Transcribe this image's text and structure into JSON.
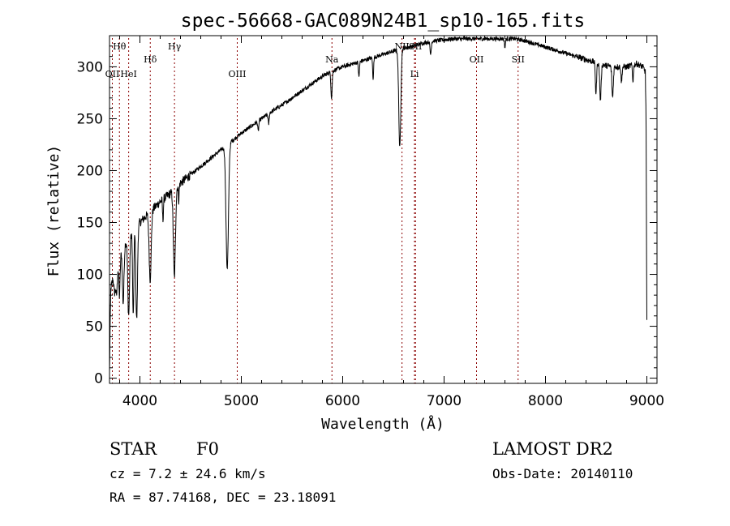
{
  "chart_data": {
    "type": "line",
    "title": "spec-56668-GAC089N24B1_sp10-165.fits",
    "xlabel": "Wavelength (Å)",
    "ylabel": "Flux (relative)",
    "xlim": [
      3700,
      9100
    ],
    "ylim": [
      -5,
      330
    ],
    "x_ticks": [
      4000,
      5000,
      6000,
      7000,
      8000,
      9000
    ],
    "y_ticks": [
      0,
      50,
      100,
      150,
      200,
      250,
      300
    ],
    "grid": false,
    "line_color": "#000000",
    "marker_color": "#8b0000",
    "continuum": [
      [
        3700,
        5
      ],
      [
        3712,
        85
      ],
      [
        3740,
        100
      ],
      [
        3780,
        115
      ],
      [
        3820,
        125
      ],
      [
        3850,
        130
      ],
      [
        3900,
        138
      ],
      [
        3950,
        145
      ],
      [
        4000,
        150
      ],
      [
        4050,
        155
      ],
      [
        4100,
        160
      ],
      [
        4150,
        165
      ],
      [
        4200,
        170
      ],
      [
        4300,
        178
      ],
      [
        4400,
        188
      ],
      [
        4500,
        196
      ],
      [
        4600,
        204
      ],
      [
        4700,
        212
      ],
      [
        4800,
        220
      ],
      [
        4900,
        228
      ],
      [
        5000,
        236
      ],
      [
        5100,
        243
      ],
      [
        5200,
        250
      ],
      [
        5300,
        257
      ],
      [
        5400,
        263
      ],
      [
        5500,
        270
      ],
      [
        5600,
        277
      ],
      [
        5700,
        284
      ],
      [
        5800,
        291
      ],
      [
        5900,
        296
      ],
      [
        6000,
        300
      ],
      [
        6100,
        303
      ],
      [
        6200,
        306
      ],
      [
        6300,
        309
      ],
      [
        6400,
        312
      ],
      [
        6500,
        315
      ],
      [
        6600,
        318
      ],
      [
        6700,
        320
      ],
      [
        6800,
        323
      ],
      [
        6900,
        325
      ],
      [
        7000,
        326
      ],
      [
        7100,
        327
      ],
      [
        7200,
        327
      ],
      [
        7300,
        327
      ],
      [
        7400,
        327
      ],
      [
        7500,
        327
      ],
      [
        7600,
        327
      ],
      [
        7700,
        327
      ],
      [
        7800,
        325
      ],
      [
        7900,
        322
      ],
      [
        8000,
        319
      ],
      [
        8100,
        316
      ],
      [
        8200,
        313
      ],
      [
        8300,
        310
      ],
      [
        8400,
        307
      ],
      [
        8500,
        304
      ],
      [
        8600,
        301
      ],
      [
        8700,
        300
      ],
      [
        8800,
        300
      ],
      [
        8900,
        303
      ],
      [
        8960,
        300
      ],
      [
        8985,
        295
      ],
      [
        8992,
        250
      ],
      [
        8998,
        90
      ],
      [
        9000,
        55
      ]
    ],
    "absorption_lines": [
      [
        3750,
        20,
        8
      ],
      [
        3770,
        30,
        8
      ],
      [
        3798,
        40,
        7
      ],
      [
        3835,
        55,
        8
      ],
      [
        3889,
        75,
        9
      ],
      [
        3934,
        85,
        6
      ],
      [
        3968,
        90,
        8
      ],
      [
        4101,
        65,
        10
      ],
      [
        4227,
        20,
        4
      ],
      [
        4340,
        85,
        10
      ],
      [
        4383,
        15,
        4
      ],
      [
        4861,
        120,
        12
      ],
      [
        5167,
        10,
        5
      ],
      [
        5270,
        10,
        5
      ],
      [
        5890,
        25,
        6
      ],
      [
        6160,
        15,
        5
      ],
      [
        6300,
        20,
        5
      ],
      [
        6563,
        95,
        10
      ],
      [
        6867,
        12,
        6
      ],
      [
        7600,
        8,
        5
      ],
      [
        8498,
        30,
        6
      ],
      [
        8542,
        35,
        7
      ],
      [
        8662,
        30,
        7
      ],
      [
        8750,
        15,
        5
      ],
      [
        8863,
        15,
        5
      ]
    ],
    "line_markers": [
      {
        "label": "Hθ",
        "wavelength": 3798,
        "row": 0
      },
      {
        "label": "OII",
        "wavelength": 3728,
        "row": 2
      },
      {
        "label": "HeI",
        "wavelength": 3889,
        "row": 2
      },
      {
        "label": "Hδ",
        "wavelength": 4102,
        "row": 1
      },
      {
        "label": "Hγ",
        "wavelength": 4341,
        "row": 0
      },
      {
        "label": "OIII",
        "wavelength": 4960,
        "row": 2
      },
      {
        "label": "Na",
        "wavelength": 5894,
        "row": 1
      },
      {
        "label": "NII",
        "wavelength": 6585,
        "row": 0
      },
      {
        "label": "SII",
        "wavelength": 6718,
        "row": 0
      },
      {
        "label": "Li",
        "wavelength": 6708,
        "row": 2
      },
      {
        "label": "OII",
        "wavelength": 7320,
        "row": 1
      },
      {
        "label": "SII",
        "wavelength": 7730,
        "row": 1
      }
    ]
  },
  "info": {
    "object_class": "STAR",
    "subclass": "F0",
    "survey": "LAMOST DR2",
    "velocity": "cz = 7.2 ± 24.6 km/s",
    "obs_date": "Obs-Date: 20140110",
    "coords": "RA =  87.74168, DEC =  23.18091"
  }
}
